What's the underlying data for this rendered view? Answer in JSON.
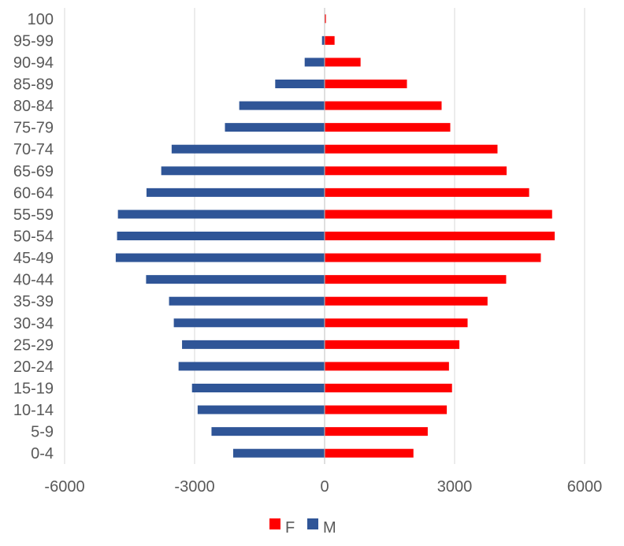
{
  "chart_data": {
    "type": "bar",
    "orientation": "horizontal",
    "title": "",
    "xlabel": "",
    "ylabel": "",
    "categories": [
      "0-4",
      "5-9",
      "10-14",
      "15-19",
      "20-24",
      "25-29",
      "30-34",
      "35-39",
      "40-44",
      "45-49",
      "50-54",
      "55-59",
      "60-64",
      "65-69",
      "70-74",
      "75-79",
      "80-84",
      "85-89",
      "90-94",
      "95-99",
      "100"
    ],
    "series": [
      {
        "name": "F",
        "color": "#ff0000",
        "values": [
          2050,
          2380,
          2820,
          2940,
          2870,
          3110,
          3300,
          3760,
          4190,
          4990,
          5310,
          5250,
          4720,
          4200,
          3990,
          2900,
          2700,
          1900,
          830,
          230,
          30
        ]
      },
      {
        "name": "M",
        "color": "#2f5597",
        "values": [
          -2110,
          -2610,
          -2930,
          -3060,
          -3370,
          -3290,
          -3480,
          -3590,
          -4120,
          -4820,
          -4790,
          -4770,
          -4110,
          -3770,
          -3530,
          -2300,
          -1970,
          -1140,
          -460,
          -60,
          -5
        ]
      }
    ],
    "xlim": [
      -6000,
      6000
    ],
    "xticks": [
      "-6000",
      "-3000",
      "0",
      "3000",
      "6000"
    ],
    "xtick_values": [
      -6000,
      -3000,
      0,
      3000,
      6000
    ],
    "grid": "vertical",
    "legend": {
      "position": "bottom",
      "items": [
        {
          "label": "F",
          "color": "#ff0000"
        },
        {
          "label": "M",
          "color": "#2f5597"
        }
      ]
    }
  }
}
